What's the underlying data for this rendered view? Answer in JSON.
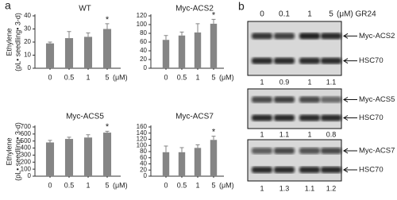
{
  "panel_labels": [
    "a",
    "b"
  ],
  "chart_data": [
    {
      "type": "bar",
      "title": "WT",
      "ylabel": [
        "Ethylene",
        "(pL• seedling• 3-d)"
      ],
      "categories": [
        "0",
        "0.5",
        "1",
        "5"
      ],
      "x_unit": "(μM)",
      "values": [
        19,
        23,
        24,
        30
      ],
      "errors": [
        1,
        5,
        3,
        4
      ],
      "significance": [
        null,
        null,
        null,
        "*"
      ],
      "color": "#858585",
      "ylim": [
        0,
        40
      ],
      "yticks": [
        0,
        10,
        20,
        30,
        40
      ]
    },
    {
      "type": "bar",
      "title": "Myc-ACS2",
      "categories": [
        "0",
        "0.5",
        "1",
        "5"
      ],
      "x_unit": "(μM)",
      "values": [
        65,
        75,
        82,
        102
      ],
      "errors": [
        10,
        8,
        20,
        10
      ],
      "significance": [
        null,
        null,
        null,
        "*"
      ],
      "color": "#858585",
      "ylim": [
        0,
        120
      ],
      "yticks": [
        0,
        20,
        40,
        60,
        80,
        100,
        120
      ]
    },
    {
      "type": "bar",
      "title": "Myc-ACS5",
      "ylabel": [
        "Ethylene",
        "(pL• seedling• 3-d)"
      ],
      "categories": [
        "0",
        "0.5",
        "1",
        "5"
      ],
      "x_unit": "(μM)",
      "values": [
        480,
        530,
        550,
        620
      ],
      "errors": [
        30,
        25,
        40,
        20
      ],
      "significance": [
        null,
        null,
        null,
        "*"
      ],
      "color": "#858585",
      "ylim": [
        0,
        700
      ],
      "yticks": [
        0,
        100,
        200,
        300,
        400,
        500,
        600,
        700
      ]
    },
    {
      "type": "bar",
      "title": "Myc-ACS7",
      "categories": [
        "0",
        "0.5",
        "1",
        "5"
      ],
      "x_unit": "(μM)",
      "values": [
        78,
        78,
        92,
        118
      ],
      "errors": [
        20,
        15,
        10,
        12
      ],
      "significance": [
        null,
        null,
        null,
        "*"
      ],
      "color": "#858585",
      "ylim": [
        0,
        160
      ],
      "yticks": [
        0,
        20,
        40,
        60,
        80,
        100,
        120,
        140,
        160
      ]
    }
  ],
  "blot": {
    "header": [
      "0",
      "0.1",
      "1",
      "5",
      "(μM) GR24"
    ],
    "panels": [
      {
        "bands": [
          "Myc-ACS2",
          "HSC70"
        ],
        "ratios": [
          1,
          0.9,
          1,
          1.1
        ]
      },
      {
        "bands": [
          "Myc-ACS5",
          "HSC70"
        ],
        "ratios": [
          1,
          1.1,
          1,
          0.8
        ]
      },
      {
        "bands": [
          "Myc-ACS7",
          "HSC70"
        ],
        "ratios": [
          1,
          1.3,
          1.1,
          1.2
        ]
      }
    ]
  }
}
